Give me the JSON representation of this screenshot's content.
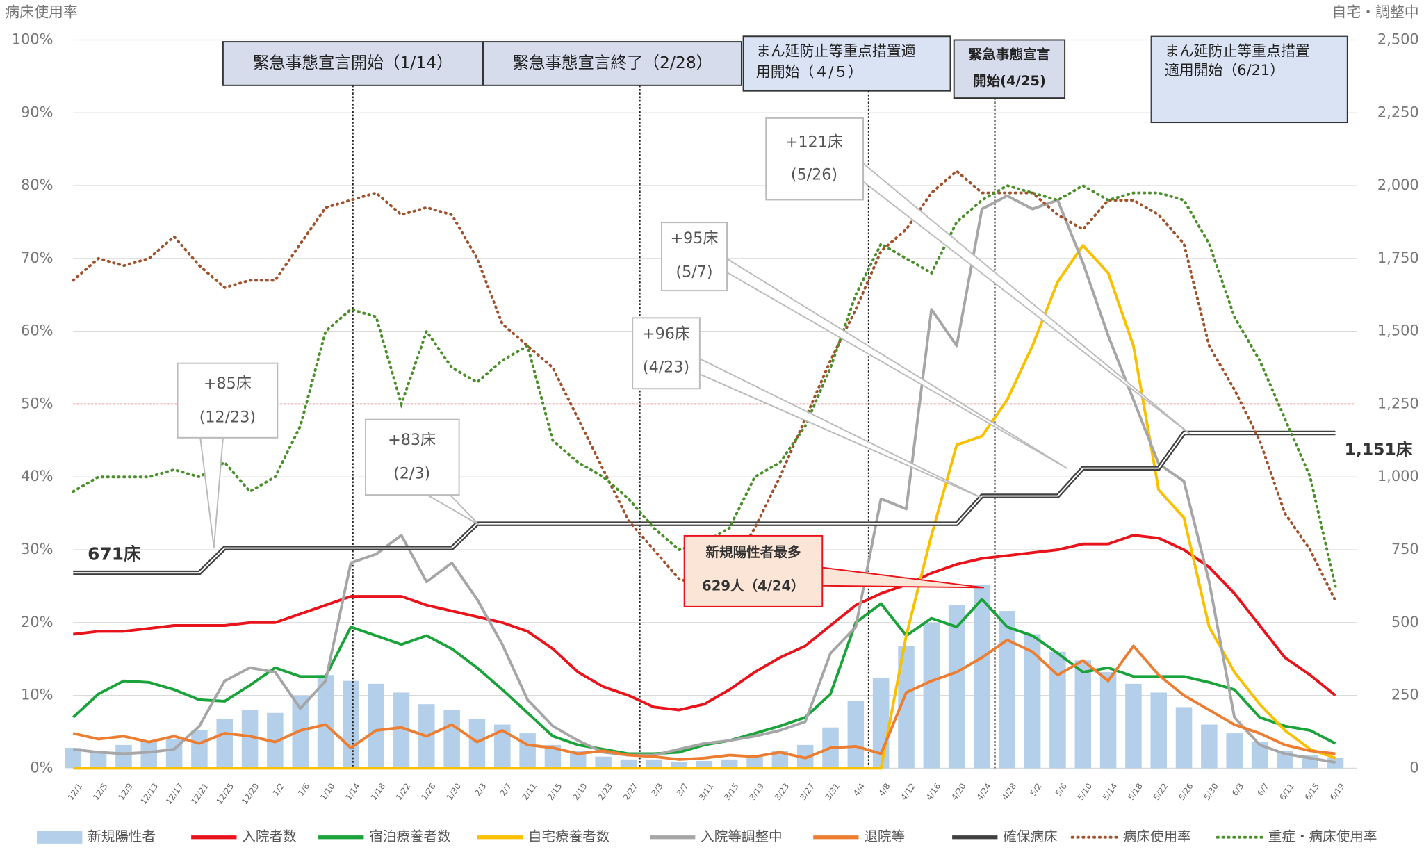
{
  "chart_data": {
    "type": "combo",
    "y_title": "病床使用率",
    "y2_title": "自宅・調整中",
    "categories": [
      "12/1",
      "12/5",
      "12/9",
      "12/13",
      "12/17",
      "12/21",
      "12/25",
      "12/29",
      "1/2",
      "1/6",
      "1/10",
      "1/14",
      "1/18",
      "1/22",
      "1/26",
      "1/30",
      "2/3",
      "2/7",
      "2/11",
      "2/15",
      "2/19",
      "2/23",
      "2/27",
      "3/3",
      "3/7",
      "3/11",
      "3/15",
      "3/19",
      "3/23",
      "3/27",
      "3/31",
      "4/4",
      "4/8",
      "4/12",
      "4/16",
      "4/20",
      "4/24",
      "4/28",
      "5/2",
      "5/6",
      "5/10",
      "5/14",
      "5/18",
      "5/22",
      "5/26",
      "5/30",
      "6/3",
      "6/7",
      "6/11",
      "6/15",
      "6/19"
    ],
    "ylim": [
      0,
      100
    ],
    "yticks": [
      {
        "value": 0,
        "label": "0%"
      },
      {
        "value": 10,
        "label": "10%"
      },
      {
        "value": 20,
        "label": "20%"
      },
      {
        "value": 30,
        "label": "30%"
      },
      {
        "value": 40,
        "label": "40%"
      },
      {
        "value": 50,
        "label": "50%"
      },
      {
        "value": 60,
        "label": "60%"
      },
      {
        "value": 70,
        "label": "70%"
      },
      {
        "value": 80,
        "label": "80%"
      },
      {
        "value": 90,
        "label": "90%"
      },
      {
        "value": 100,
        "label": "100%"
      }
    ],
    "y2lim": [
      0,
      2500
    ],
    "y2ticks": [
      0,
      250,
      500,
      750,
      {
        "value": 1000,
        "label": "1,000"
      },
      {
        "value": 1250,
        "label": "1,250"
      },
      {
        "value": 1500,
        "label": "1,500"
      },
      {
        "value": 1750,
        "label": "1,750"
      },
      {
        "value": 2000,
        "label": "2,000"
      },
      {
        "value": 2250,
        "label": "2,250"
      },
      {
        "value": 2500,
        "label": "2,500"
      }
    ],
    "grid": true,
    "reference_line": 50,
    "series": [
      {
        "name": "新規陽性者",
        "type": "bar",
        "axis": "y2",
        "color": "#b4cfea",
        "values": [
          70,
          60,
          80,
          90,
          100,
          130,
          170,
          200,
          190,
          250,
          320,
          300,
          290,
          260,
          220,
          200,
          170,
          150,
          120,
          80,
          60,
          40,
          30,
          30,
          20,
          25,
          30,
          40,
          60,
          80,
          140,
          230,
          310,
          420,
          500,
          560,
          629,
          540,
          460,
          400,
          370,
          330,
          290,
          260,
          210,
          150,
          120,
          90,
          60,
          45,
          35
        ]
      },
      {
        "name": "入院者数",
        "type": "line",
        "axis": "y2",
        "color": "#e8141c",
        "values": [
          460,
          470,
          470,
          480,
          490,
          490,
          490,
          500,
          500,
          530,
          560,
          590,
          590,
          590,
          560,
          540,
          520,
          500,
          470,
          410,
          330,
          280,
          250,
          210,
          200,
          220,
          270,
          330,
          380,
          420,
          490,
          560,
          600,
          630,
          670,
          700,
          720,
          730,
          740,
          750,
          770,
          770,
          800,
          790,
          750,
          690,
          600,
          490,
          380,
          320,
          250
        ]
      },
      {
        "name": "宿泊療養者数",
        "type": "line",
        "axis": "y2",
        "color": "#1aa33a",
        "values": [
          175,
          255,
          300,
          295,
          270,
          235,
          230,
          285,
          345,
          315,
          315,
          485,
          455,
          425,
          455,
          410,
          345,
          270,
          190,
          110,
          80,
          65,
          50,
          50,
          55,
          80,
          95,
          120,
          145,
          175,
          255,
          500,
          565,
          455,
          515,
          485,
          580,
          485,
          455,
          395,
          330,
          345,
          315,
          315,
          315,
          295,
          270,
          175,
          145,
          130,
          85
        ]
      },
      {
        "name": "自宅療養者数",
        "type": "line",
        "axis": "y2",
        "color": "#f9c000",
        "values": [
          0,
          0,
          0,
          0,
          0,
          0,
          0,
          0,
          0,
          0,
          0,
          0,
          0,
          0,
          0,
          0,
          0,
          0,
          0,
          0,
          0,
          0,
          0,
          0,
          0,
          0,
          0,
          0,
          0,
          0,
          0,
          0,
          0,
          455,
          800,
          1110,
          1140,
          1265,
          1450,
          1670,
          1795,
          1700,
          1450,
          955,
          860,
          485,
          330,
          220,
          130,
          65,
          35
        ]
      },
      {
        "name": "入院等調整中",
        "type": "line",
        "axis": "y2",
        "color": "#a6a6a6",
        "values": [
          65,
          55,
          50,
          55,
          65,
          145,
          300,
          345,
          330,
          205,
          300,
          705,
          735,
          800,
          640,
          705,
          580,
          425,
          235,
          145,
          95,
          55,
          45,
          45,
          65,
          85,
          95,
          110,
          130,
          160,
          395,
          485,
          925,
          890,
          1575,
          1450,
          1920,
          1965,
          1920,
          1950,
          1735,
          1485,
          1265,
          1045,
          985,
          640,
          175,
          80,
          50,
          35,
          20
        ]
      },
      {
        "name": "退院等",
        "type": "line",
        "axis": "y2",
        "color": "#ed7d31",
        "values": [
          120,
          100,
          110,
          90,
          110,
          85,
          120,
          110,
          90,
          130,
          150,
          70,
          130,
          140,
          110,
          150,
          90,
          130,
          80,
          70,
          50,
          60,
          45,
          40,
          30,
          35,
          45,
          40,
          55,
          35,
          70,
          75,
          50,
          260,
          300,
          330,
          380,
          440,
          400,
          320,
          370,
          300,
          420,
          320,
          250,
          200,
          150,
          120,
          80,
          60,
          50
        ]
      },
      {
        "name": "確保病床",
        "type": "line",
        "axis": "y2",
        "color": "#404040",
        "values": [
          671,
          671,
          671,
          671,
          671,
          671,
          756,
          756,
          756,
          756,
          756,
          756,
          756,
          756,
          756,
          756,
          839,
          839,
          839,
          839,
          839,
          839,
          839,
          839,
          839,
          839,
          839,
          839,
          839,
          839,
          839,
          839,
          839,
          839,
          839,
          839,
          935,
          935,
          935,
          935,
          1030,
          1030,
          1030,
          1030,
          1151,
          1151,
          1151,
          1151,
          1151,
          1151,
          1151
        ]
      },
      {
        "name": "病床使用率",
        "type": "dotted",
        "color": "#a0522d",
        "values": [
          67,
          70,
          69,
          70,
          73,
          69,
          66,
          67,
          67,
          72,
          77,
          78,
          79,
          76,
          77,
          76,
          70,
          61,
          58,
          55,
          48,
          41,
          34,
          30,
          26,
          25,
          27,
          33,
          40,
          48,
          56,
          63,
          71,
          74,
          79,
          82,
          79,
          79,
          79,
          76,
          74,
          78,
          78,
          76,
          72,
          58,
          52,
          45,
          35,
          30,
          23
        ]
      },
      {
        "name": "重症・病床使用率",
        "type": "dotted",
        "color": "#4a8f2a",
        "values": [
          38,
          40,
          40,
          40,
          41,
          40,
          42,
          38,
          40,
          47,
          60,
          63,
          62,
          50,
          60,
          55,
          53,
          56,
          58,
          45,
          42,
          40,
          37,
          33,
          30,
          31,
          33,
          40,
          42,
          47,
          55,
          65,
          72,
          70,
          68,
          75,
          78,
          80,
          79,
          78,
          80,
          78,
          79,
          79,
          78,
          72,
          62,
          56,
          48,
          40,
          25
        ]
      }
    ],
    "annotations": [
      {
        "lines": [
          "緊急事態宣言開始（1/14）"
        ]
      },
      {
        "lines": [
          "緊急事態宣言終了（2/28）"
        ]
      },
      {
        "lines": [
          "まん延防止等重点措置適",
          "用開始（４/５）"
        ]
      },
      {
        "lines": [
          "緊急事態宣言",
          "開始(4/25)"
        ]
      },
      {
        "lines": [
          "まん延防止等重点措置",
          "適用開始（6/21）"
        ]
      },
      {
        "lines": [
          "+85床",
          "(12/23)"
        ]
      },
      {
        "lines": [
          "+83床",
          "(2/3)"
        ]
      },
      {
        "lines": [
          "+96床",
          "(4/23)"
        ]
      },
      {
        "lines": [
          "+95床",
          "(5/7)"
        ]
      },
      {
        "lines": [
          "+121床",
          "(5/26)"
        ]
      },
      {
        "lines": [
          "新規陽性者最多",
          "629人（4/24）"
        ]
      },
      {
        "lines": [
          "671床"
        ]
      },
      {
        "lines": [
          "1,151床"
        ]
      }
    ]
  }
}
